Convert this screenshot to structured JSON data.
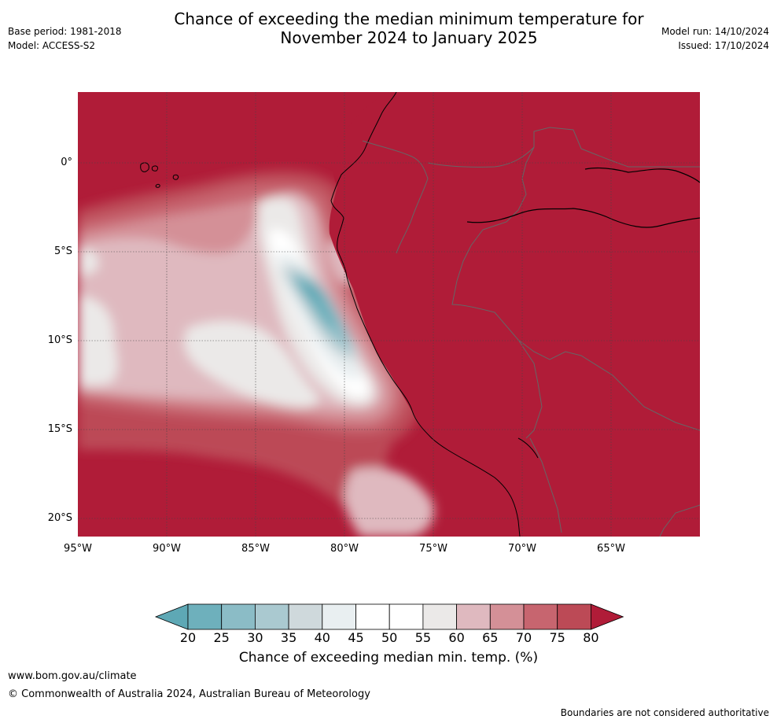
{
  "header": {
    "base_period": "Base period: 1981-2018",
    "model": "Model: ACCESS-S2",
    "title_line1": "Chance of exceeding the median minimum temperature for",
    "title_line2": "November 2024 to January 2025",
    "model_run": "Model run: 14/10/2024",
    "issued": "Issued: 17/10/2024"
  },
  "map": {
    "lat_labels": [
      "0°",
      "5°S",
      "10°S",
      "15°S",
      "20°S"
    ],
    "lon_labels": [
      "95°W",
      "90°W",
      "85°W",
      "80°W",
      "75°W",
      "70°W",
      "65°W"
    ],
    "lat_values": [
      0,
      -5,
      -10,
      -15,
      -20
    ],
    "lon_values": [
      -95,
      -90,
      -85,
      -80,
      -75,
      -70,
      -65
    ],
    "lon_range": [
      -95,
      -60
    ],
    "lat_range": [
      -21,
      4
    ]
  },
  "colorbar": {
    "ticks": [
      "20",
      "25",
      "30",
      "35",
      "40",
      "45",
      "50",
      "55",
      "60",
      "65",
      "70",
      "75",
      "80"
    ],
    "colors": [
      "#5ea8b5",
      "#6eb0bc",
      "#8bbcc6",
      "#aac9d0",
      "#cfd9dc",
      "#e9eff1",
      "#ffffff",
      "#ffffff",
      "#ebe9e8",
      "#dfb9bf",
      "#d49097",
      "#c7656f",
      "#bc4a56",
      "#b01c38"
    ],
    "title": "Chance of exceeding median min. temp. (%)"
  },
  "footer": {
    "website": "www.bom.gov.au/climate",
    "copyright": "© Commonwealth of Australia 2024, Australian Bureau of Meteorology",
    "disclaimer": "Boundaries are not considered authoritative"
  }
}
